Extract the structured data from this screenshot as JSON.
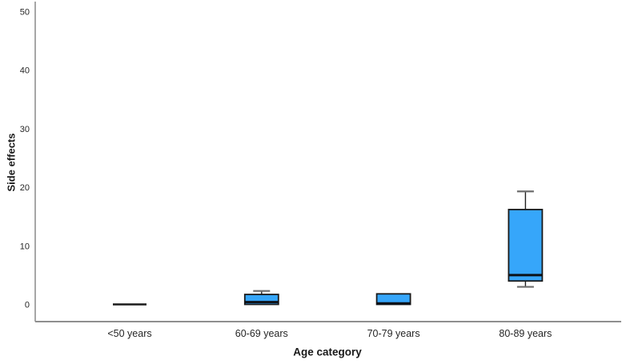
{
  "chart_data": {
    "type": "box",
    "title": "",
    "xlabel": "Age category",
    "ylabel": "Side effects",
    "ylim": [
      0,
      50
    ],
    "yticks": [
      0,
      10,
      20,
      30,
      40,
      50
    ],
    "grid": false,
    "legend": "none",
    "categories": [
      "<50 years",
      "60-69 years",
      "70-79 years",
      "80-89 years"
    ],
    "series": [
      {
        "category": "<50 years",
        "min": 0,
        "q1": 0,
        "median": 0,
        "q3": 0,
        "max": 0
      },
      {
        "category": "60-69 years",
        "min": 0,
        "q1": 0,
        "median": 0.4,
        "q3": 1.7,
        "max": 2.3
      },
      {
        "category": "70-79 years",
        "min": 0,
        "q1": 0,
        "median": 0,
        "q3": 1.8,
        "max": 1.8
      },
      {
        "category": "80-89 years",
        "min": 3,
        "q1": 4,
        "median": 5,
        "q3": 16.2,
        "max": 19.3
      }
    ],
    "colors": {
      "box_fill": "#36a6fa",
      "box_border": "#1a1a1a",
      "median_line": "#0d1117",
      "whisker_stem": "#222222",
      "whisker_cap": "#6e6e6e",
      "axis_line": "#8f8f8f",
      "tick_text": "#262626",
      "background": "#ffffff"
    }
  }
}
